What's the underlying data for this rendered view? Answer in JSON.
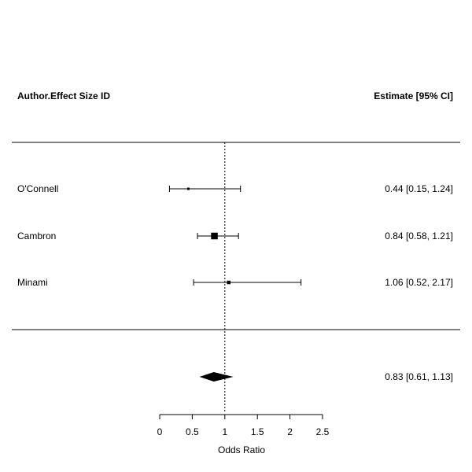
{
  "chart_data": {
    "type": "forest",
    "header_left": "Author.Effect Size ID",
    "header_right": "Estimate [95% CI]",
    "xlabel": "Odds Ratio",
    "xlim": [
      0,
      2.5
    ],
    "xticks": [
      "0",
      "0.5",
      "1",
      "1.5",
      "2",
      "2.5"
    ],
    "reference_line": 1,
    "studies": [
      {
        "label": "O'Connell",
        "estimate": 0.44,
        "ci_low": 0.15,
        "ci_high": 1.24,
        "weight": 0.1,
        "ci_text": "0.44 [0.15, 1.24]"
      },
      {
        "label": "Cambron",
        "estimate": 0.84,
        "ci_low": 0.58,
        "ci_high": 1.21,
        "weight": 0.65,
        "ci_text": "0.84 [0.58, 1.21]"
      },
      {
        "label": "Minami",
        "estimate": 1.06,
        "ci_low": 0.52,
        "ci_high": 2.17,
        "weight": 0.25,
        "ci_text": "1.06 [0.52, 2.17]"
      }
    ],
    "summary": {
      "estimate": 0.83,
      "ci_low": 0.61,
      "ci_high": 1.13,
      "ci_text": "0.83 [0.61, 1.13]"
    }
  }
}
